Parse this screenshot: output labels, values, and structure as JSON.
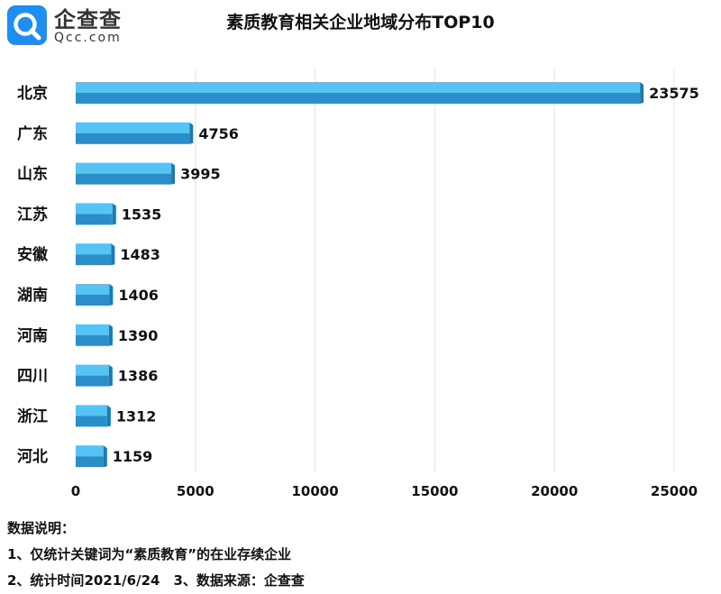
{
  "brand": {
    "name_cn": "企查查",
    "name_en": "Qcc.com",
    "logo_icon": "qcc-logo-icon"
  },
  "chart_data": {
    "type": "bar",
    "orientation": "horizontal",
    "title": "素质教育相关企业地域分布TOP10",
    "categories": [
      "北京",
      "广东",
      "山东",
      "江苏",
      "安徽",
      "湖南",
      "河南",
      "四川",
      "浙江",
      "河北"
    ],
    "values": [
      23575,
      4756,
      3995,
      1535,
      1483,
      1406,
      1390,
      1386,
      1312,
      1159
    ],
    "xlim": [
      0,
      25000
    ],
    "xticks": [
      0,
      5000,
      10000,
      15000,
      20000,
      25000
    ],
    "xlabel": "",
    "ylabel": "",
    "grid": "vertical",
    "legend": "none",
    "colors": {
      "bar_top": "#55c4f4",
      "bar_bottom": "#2a8fc9",
      "bar_end": "#1e79ad",
      "grid": "#e3e3e3"
    }
  },
  "notes": {
    "heading": "数据说明：",
    "line1": "1、仅统计关键词为“素质教育”的在业存续企业",
    "line2": "2、统计时间2021/6/24　3、数据来源：企查查"
  }
}
